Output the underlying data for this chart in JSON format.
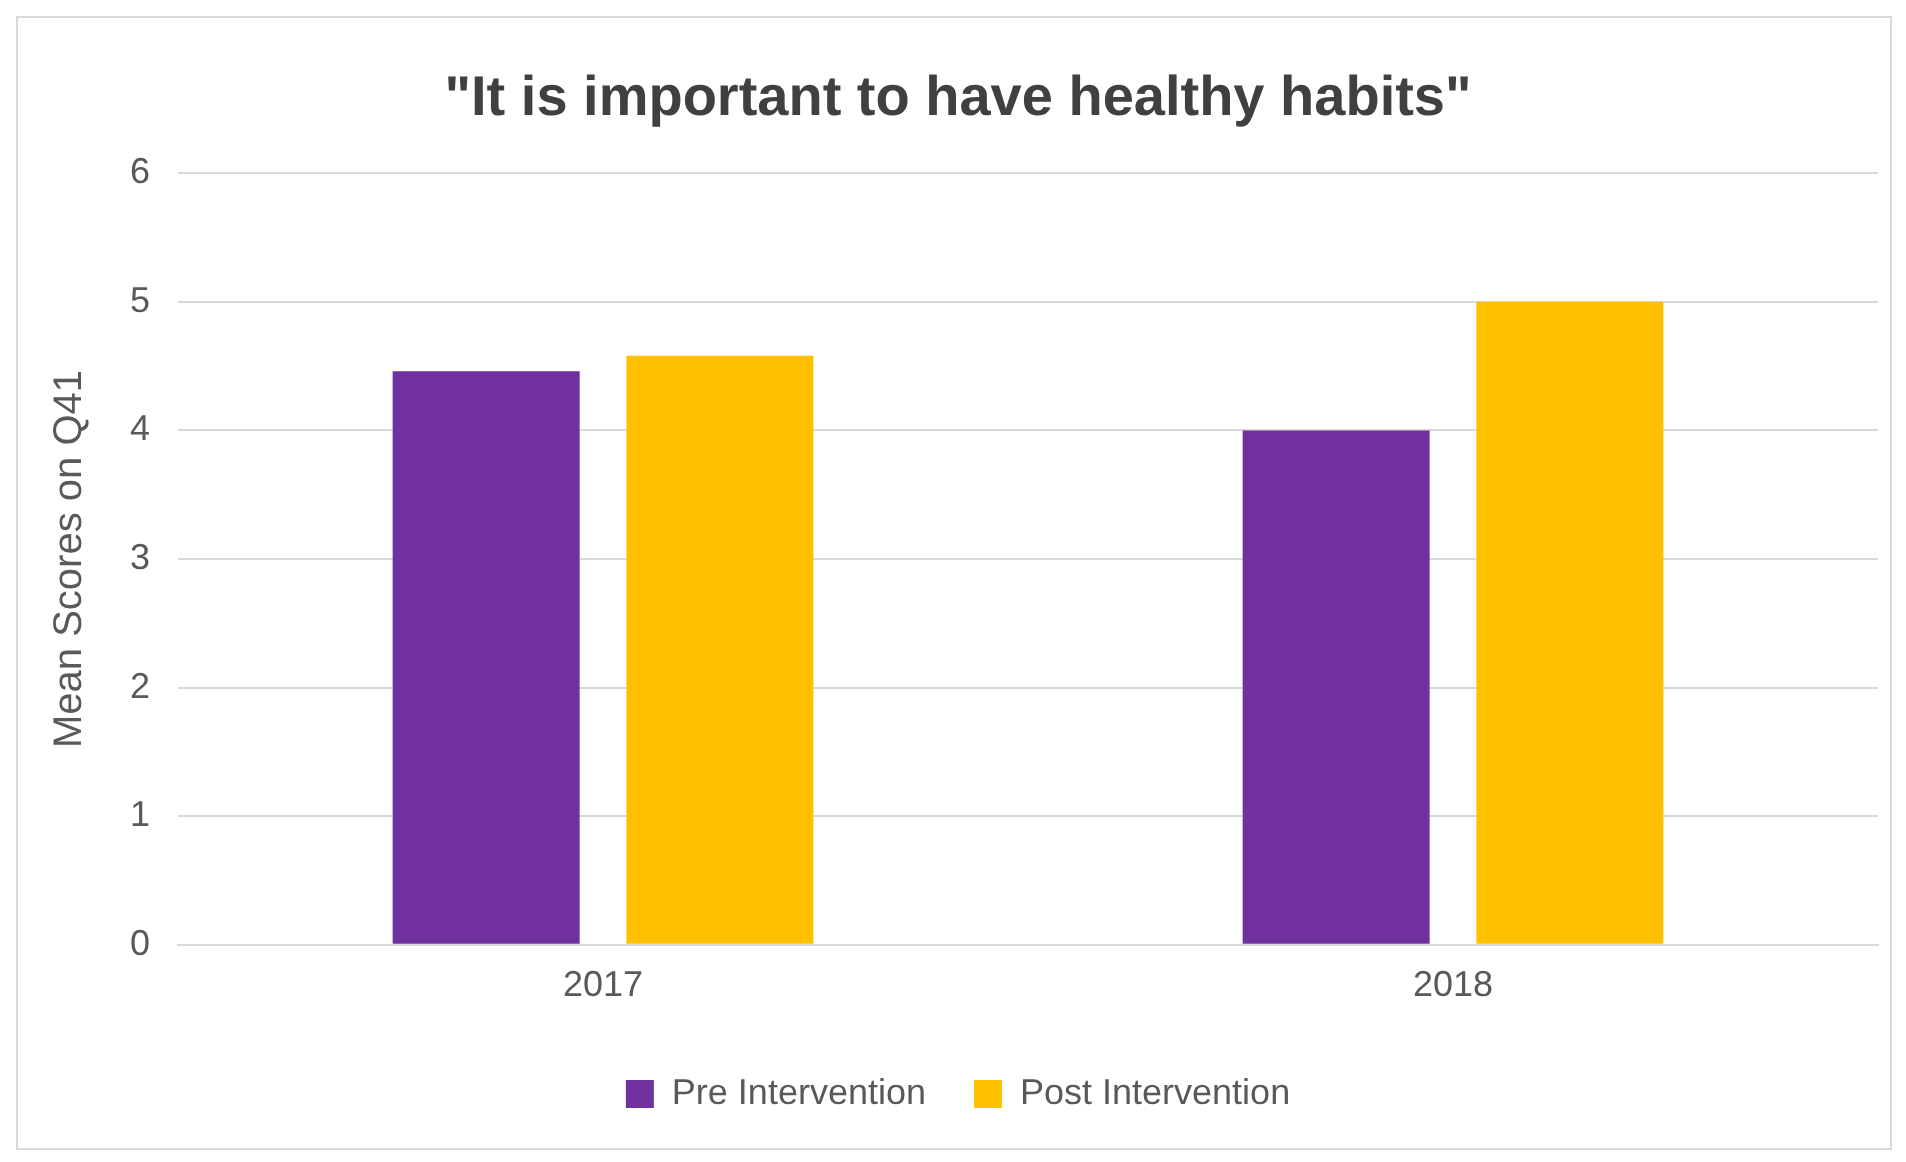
{
  "chart_data": {
    "type": "bar",
    "title": "\"It is important to have healthy habits\"",
    "ylabel": "Mean Scores on Q41",
    "categories": [
      "2017",
      "2018"
    ],
    "series": [
      {
        "name": "Pre Intervention",
        "color": "#7030a0",
        "values": [
          4.46,
          4.0
        ]
      },
      {
        "name": "Post Intervention",
        "color": "#ffc000",
        "values": [
          4.58,
          5.0
        ]
      }
    ],
    "ylim": [
      0,
      6
    ],
    "yticks": [
      0,
      1,
      2,
      3,
      4,
      5,
      6
    ],
    "grid": "y",
    "legend": "bottom"
  }
}
